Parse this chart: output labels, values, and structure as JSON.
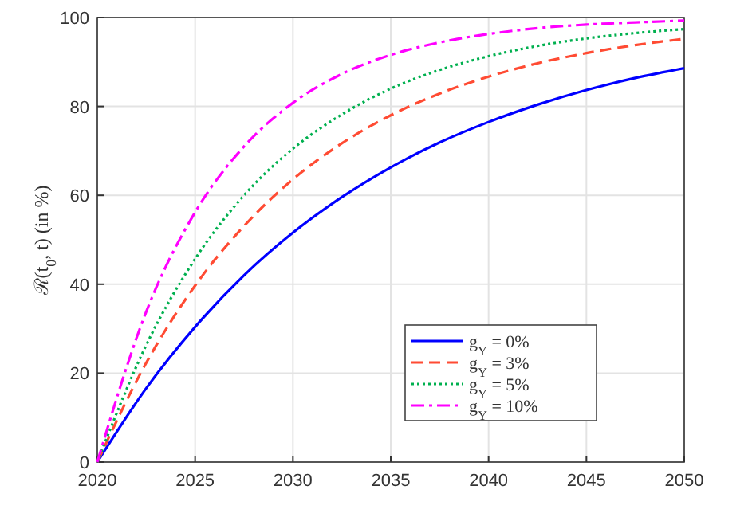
{
  "chart_data": {
    "type": "line",
    "ylabel": "ℛ(t$_{0}$, t) (in %)",
    "x": [
      2020,
      2022.5,
      2025,
      2027.5,
      2030,
      2032.5,
      2035,
      2037.5,
      2040,
      2042.5,
      2045,
      2047.5,
      2050
    ],
    "series": [
      {
        "name": "g$_{Y}$ = 0%",
        "color": "#0000ff",
        "line_style": "solid",
        "values": [
          0,
          16.6,
          30.4,
          42,
          51.6,
          59.6,
          66.3,
          71.9,
          76.5,
          80.4,
          83.7,
          86.4,
          88.6
        ]
      },
      {
        "name": "g$_{Y}$ = 3%",
        "color": "#ff4b33",
        "line_style": "dashed",
        "values": [
          0,
          22.3,
          39.7,
          53.1,
          63.6,
          71.7,
          78,
          82.9,
          86.7,
          89.7,
          92,
          93.8,
          95.2
        ]
      },
      {
        "name": "g$_{Y}$ = 5%",
        "color": "#00b04f",
        "line_style": "dotted",
        "values": [
          0,
          26.3,
          45.7,
          60,
          70.5,
          78.2,
          84,
          88.2,
          91.3,
          93.6,
          95.3,
          96.5,
          97.4
        ]
      },
      {
        "name": "g$_{Y}$ = 10%",
        "color": "#ff00ff",
        "line_style": "dashdot",
        "values": [
          0,
          33.8,
          56.2,
          71,
          80.8,
          87.3,
          91.6,
          94.4,
          96.3,
          97.6,
          98.4,
          98.9,
          99.3
        ]
      }
    ],
    "xlim": [
      2020,
      2050
    ],
    "xticks": [
      2020,
      2025,
      2030,
      2035,
      2040,
      2045,
      2050
    ],
    "ylim": [
      0,
      100
    ],
    "yticks": [
      0,
      20,
      40,
      60,
      80,
      100
    ],
    "grid": true,
    "legend": "bottom right"
  }
}
